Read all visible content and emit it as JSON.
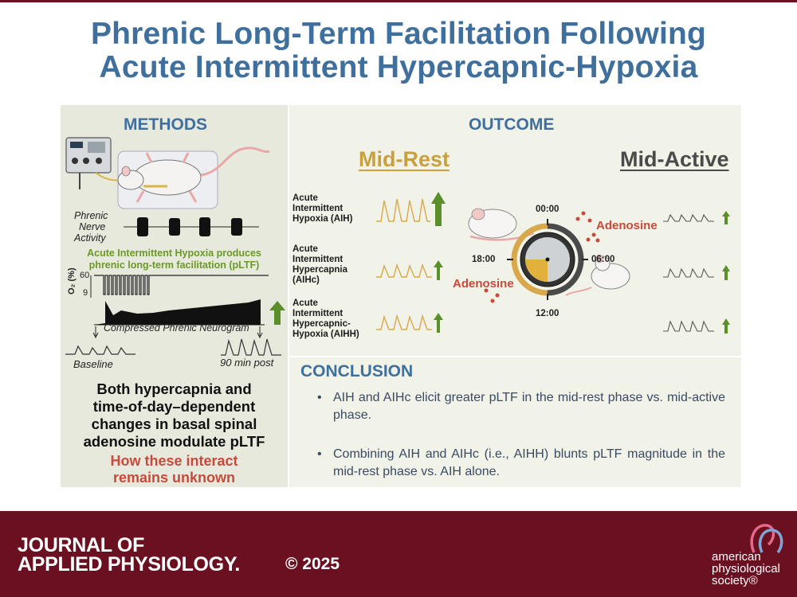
{
  "title": {
    "line1": "Phrenic Long-Term Facilitation Following",
    "line2": "Acute Intermittent Hypercapnic-Hypoxia"
  },
  "methods": {
    "heading": "METHODS",
    "nerve_label": [
      "Phrenic",
      "Nerve",
      "Activity"
    ],
    "finding": [
      "Acute Intermittent Hypoxia produces",
      "phrenic long-term facilitation (pLTF)"
    ],
    "o2_axis": "O₂ (%)",
    "o2_ticks": [
      "60",
      "9"
    ],
    "neurogram_label": "Compressed Phrenic Neurogram",
    "baseline_label": "Baseline",
    "post_label": "90 min post",
    "summary": [
      "Both hypercapnia and",
      "time-of-day–dependent",
      "changes in basal spinal",
      "adenosine modulate pLTF"
    ],
    "unknown": [
      "How these interact",
      "remains unknown"
    ]
  },
  "outcome": {
    "heading": "OUTCOME",
    "mid_rest": "Mid-Rest",
    "mid_active": "Mid-Active",
    "rows": [
      {
        "label": [
          "Acute",
          "Intermittent",
          "Hypoxia (AIH)"
        ]
      },
      {
        "label": [
          "Acute",
          "Intermittent",
          "Hypercapnia",
          "(AIHc)"
        ]
      },
      {
        "label": [
          "Acute",
          "Intermittent",
          "Hypercapnic-",
          "Hypoxia (AIHH)"
        ]
      }
    ],
    "clock": {
      "top": "00:00",
      "right": "06:00",
      "bottom": "12:00",
      "left": "18:00"
    },
    "adenosine_label": "Adenosine"
  },
  "conclusion": {
    "heading": "CONCLUSION",
    "bullets": [
      "AIH and AIHc elicit greater pLTF in the mid-rest phase vs. mid-active phase.",
      "Combining AIH and AIHc (i.e., AIHH) blunts pLTF magnitude in the mid-rest phase vs. AIH alone."
    ]
  },
  "footer": {
    "journal_line1": "JOURNAL OF",
    "journal_line2": "APPLIED PHYSIOLOGY.",
    "copyright": "© 2025",
    "society": [
      "american",
      "physiological",
      "society®"
    ]
  },
  "colors": {
    "title_blue": "#3f6f9c",
    "maroon": "#6b1020",
    "mid_rest_gold": "#c9a040",
    "mid_active_gray": "#4a4a4a",
    "increase_green": "#5a8f2a",
    "adenosine_red": "#c94a3a"
  },
  "icons": [
    "rat-icon",
    "recording-equipment-icon",
    "clock-icon",
    "up-arrow-icon",
    "society-logo-icon"
  ]
}
